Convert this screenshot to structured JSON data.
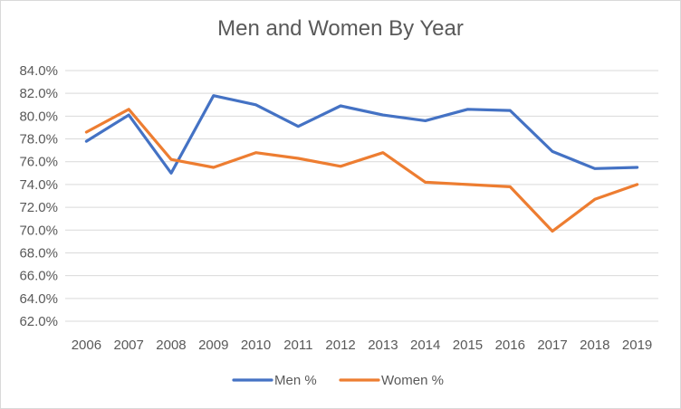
{
  "chart_data": {
    "type": "line",
    "title": "Men and Women By Year",
    "categories": [
      "2006",
      "2007",
      "2008",
      "2009",
      "2010",
      "2011",
      "2012",
      "2013",
      "2014",
      "2015",
      "2016",
      "2017",
      "2018",
      "2019"
    ],
    "series": [
      {
        "name": "Men %",
        "color": "#4472c4",
        "values": [
          77.8,
          80.1,
          75.0,
          81.8,
          81.0,
          79.1,
          80.9,
          80.1,
          79.6,
          80.6,
          80.5,
          76.9,
          75.4,
          75.5
        ]
      },
      {
        "name": "Women %",
        "color": "#ed7d31",
        "values": [
          78.6,
          80.6,
          76.2,
          75.5,
          76.8,
          76.3,
          75.6,
          76.8,
          74.2,
          74.0,
          73.8,
          69.9,
          72.7,
          74.0
        ]
      }
    ],
    "ylim": [
      62,
      84
    ],
    "yticks": [
      "62.0%",
      "64.0%",
      "66.0%",
      "68.0%",
      "70.0%",
      "72.0%",
      "74.0%",
      "76.0%",
      "78.0%",
      "80.0%",
      "82.0%",
      "84.0%"
    ],
    "grid": true,
    "legend_position": "bottom"
  }
}
